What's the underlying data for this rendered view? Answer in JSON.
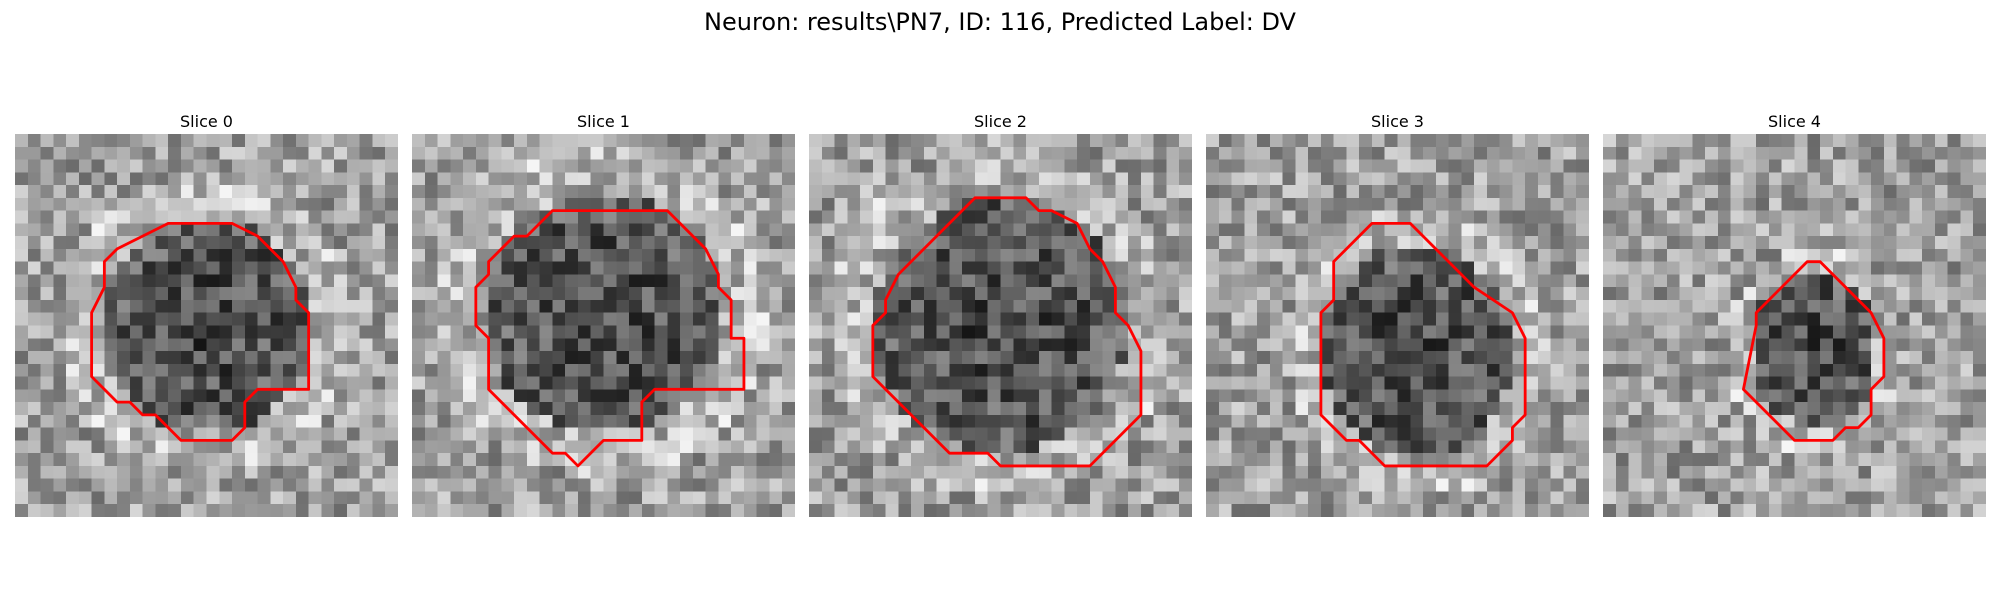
{
  "figure": {
    "title": "Neuron: results\\PN7, ID: 116, Predicted Label: DV"
  },
  "contour_color": "#ff0000",
  "colormap": "gray",
  "panels": [
    {
      "title": "Slice 0",
      "contour": [
        [
          12,
          7
        ],
        [
          17,
          7
        ],
        [
          19,
          8
        ],
        [
          21,
          10
        ],
        [
          22,
          12
        ],
        [
          22,
          13
        ],
        [
          23,
          14
        ],
        [
          23,
          20
        ],
        [
          21,
          20
        ],
        [
          19,
          20
        ],
        [
          18,
          21
        ],
        [
          18,
          23
        ],
        [
          17,
          24
        ],
        [
          13,
          24
        ],
        [
          11,
          22
        ],
        [
          10,
          22
        ],
        [
          9,
          21
        ],
        [
          8,
          21
        ],
        [
          6,
          19
        ],
        [
          6,
          14
        ],
        [
          7,
          12
        ],
        [
          7,
          10
        ],
        [
          8,
          9
        ],
        [
          10,
          8
        ]
      ],
      "dark_center": [
        15,
        15
      ],
      "dark_rx": 8.5,
      "dark_ry": 8.5
    },
    {
      "title": "Slice 1",
      "contour": [
        [
          11,
          6
        ],
        [
          20,
          6
        ],
        [
          22,
          8
        ],
        [
          23,
          9
        ],
        [
          24,
          11
        ],
        [
          24,
          12
        ],
        [
          25,
          13
        ],
        [
          25,
          16
        ],
        [
          26,
          16
        ],
        [
          26,
          20
        ],
        [
          19,
          20
        ],
        [
          18,
          21
        ],
        [
          18,
          24
        ],
        [
          15,
          24
        ],
        [
          14,
          25
        ],
        [
          13,
          26
        ],
        [
          12,
          25
        ],
        [
          11,
          25
        ],
        [
          9,
          23
        ],
        [
          8,
          22
        ],
        [
          7,
          21
        ],
        [
          6,
          20
        ],
        [
          6,
          16
        ],
        [
          5,
          15
        ],
        [
          5,
          12
        ],
        [
          6,
          11
        ],
        [
          6,
          10
        ],
        [
          7,
          9
        ],
        [
          8,
          8
        ],
        [
          9,
          8
        ],
        [
          10,
          7
        ]
      ],
      "dark_center": [
        15,
        14
      ],
      "dark_rx": 9.5,
      "dark_ry": 9.5
    },
    {
      "title": "Slice 2",
      "contour": [
        [
          13,
          5
        ],
        [
          17,
          5
        ],
        [
          18,
          6
        ],
        [
          19,
          6
        ],
        [
          21,
          7
        ],
        [
          22,
          9
        ],
        [
          23,
          10
        ],
        [
          24,
          12
        ],
        [
          24,
          14
        ],
        [
          25,
          15
        ],
        [
          26,
          17
        ],
        [
          26,
          22
        ],
        [
          25,
          23
        ],
        [
          24,
          24
        ],
        [
          23,
          25
        ],
        [
          22,
          26
        ],
        [
          15,
          26
        ],
        [
          14,
          25
        ],
        [
          11,
          25
        ],
        [
          10,
          24
        ],
        [
          9,
          23
        ],
        [
          8,
          22
        ],
        [
          7,
          21
        ],
        [
          6,
          20
        ],
        [
          5,
          19
        ],
        [
          5,
          15
        ],
        [
          6,
          14
        ],
        [
          6,
          13
        ],
        [
          7,
          11
        ],
        [
          8,
          10
        ],
        [
          9,
          9
        ],
        [
          10,
          8
        ],
        [
          11,
          7
        ],
        [
          12,
          6
        ]
      ],
      "dark_center": [
        15,
        15
      ],
      "dark_rx": 10,
      "dark_ry": 10
    },
    {
      "title": "Slice 3",
      "contour": [
        [
          13,
          7
        ],
        [
          16,
          7
        ],
        [
          19,
          10
        ],
        [
          21,
          12
        ],
        [
          24,
          14
        ],
        [
          25,
          16
        ],
        [
          25,
          22
        ],
        [
          24,
          23
        ],
        [
          24,
          24
        ],
        [
          22,
          26
        ],
        [
          14,
          26
        ],
        [
          12,
          24
        ],
        [
          11,
          24
        ],
        [
          10,
          23
        ],
        [
          9,
          22
        ],
        [
          9,
          14
        ],
        [
          10,
          13
        ],
        [
          10,
          10
        ],
        [
          12,
          8
        ]
      ],
      "dark_center": [
        16.5,
        17
      ],
      "dark_rx": 7.5,
      "dark_ry": 8.5
    },
    {
      "title": "Slice 4",
      "contour": [
        [
          16,
          10
        ],
        [
          17,
          10
        ],
        [
          21,
          14
        ],
        [
          22,
          16
        ],
        [
          22,
          19
        ],
        [
          21,
          20
        ],
        [
          21,
          22
        ],
        [
          20,
          23
        ],
        [
          19,
          23
        ],
        [
          18,
          24
        ],
        [
          16,
          24
        ],
        [
          15,
          24
        ],
        [
          12,
          21
        ],
        [
          11,
          20
        ],
        [
          12,
          15
        ],
        [
          12,
          14
        ],
        [
          13,
          13
        ]
      ],
      "dark_center": [
        16.5,
        17
      ],
      "dark_rx": 5,
      "dark_ry": 6
    }
  ]
}
